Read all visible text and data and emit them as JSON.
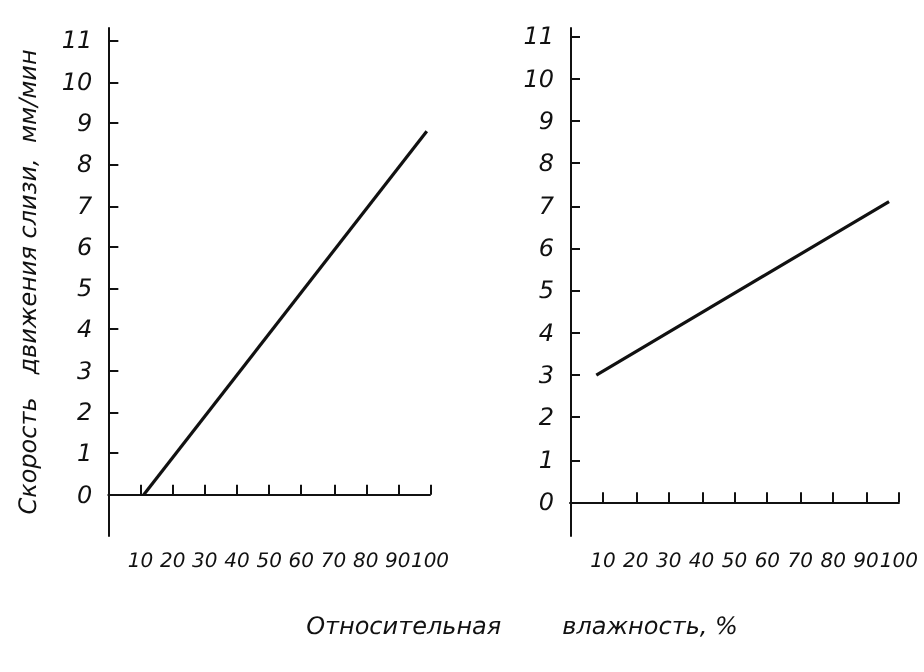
{
  "chart_data": [
    {
      "type": "line",
      "ylabel": "Скорость   движения слизи,  мм/мин",
      "xlabel": "Относительная        влажность, %",
      "x": [
        11,
        99
      ],
      "values": [
        0,
        8.8
      ],
      "color": "#111111",
      "marker": "none",
      "xlim": [
        0,
        100
      ],
      "ylim": [
        -1,
        11.3
      ],
      "xticks": [
        10,
        20,
        30,
        40,
        50,
        60,
        70,
        80,
        90,
        100
      ],
      "yticks": [
        0,
        1,
        2,
        3,
        4,
        5,
        6,
        7,
        8,
        9,
        10,
        11
      ]
    },
    {
      "type": "line",
      "x": [
        8,
        97
      ],
      "values": [
        3.0,
        7.1
      ],
      "color": "#111111",
      "marker": "none",
      "xlim": [
        0,
        100
      ],
      "ylim": [
        -0.8,
        11.2
      ],
      "xticks": [
        10,
        20,
        30,
        40,
        50,
        60,
        70,
        80,
        90,
        100
      ],
      "yticks": [
        0,
        1,
        2,
        3,
        4,
        5,
        6,
        7,
        8,
        9,
        10,
        11
      ]
    }
  ]
}
